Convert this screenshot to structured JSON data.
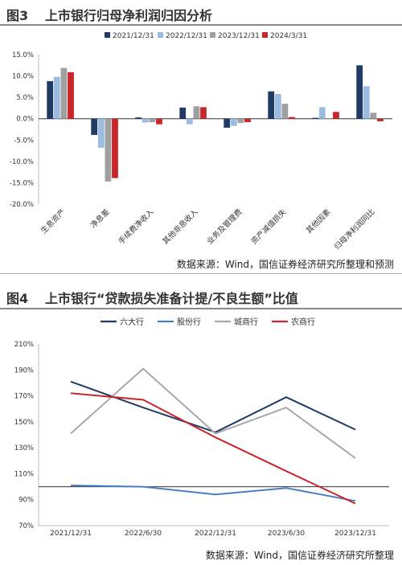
{
  "figure3": {
    "number": "图3",
    "title": "上市银行归母净利润归因分析",
    "source": "数据来源：Wind，国信证券经济研究所整理和预测"
  },
  "figure4": {
    "number": "图4",
    "title": "上市银行“贷款损失准备计提/不良生额”比值",
    "source": "数据来源：Wind，国信证券经济研究所整理"
  },
  "chart_data": [
    {
      "type": "bar",
      "categories": [
        "生息资产",
        "净息差",
        "手续费净收入",
        "其他非息收入",
        "业务及管理费",
        "资产减值损失",
        "其他因素",
        "归母净利润同比"
      ],
      "series": [
        {
          "name": "2021/12/31",
          "color": "#1f3a64",
          "values": [
            8.8,
            -3.8,
            0.3,
            2.6,
            -2.1,
            6.4,
            0.2,
            12.5
          ]
        },
        {
          "name": "2022/12/31",
          "color": "#9cbbe0",
          "values": [
            9.8,
            -6.8,
            -0.9,
            -1.3,
            -1.7,
            5.8,
            2.7,
            7.6
          ]
        },
        {
          "name": "2023/12/31",
          "color": "#a0a0a0",
          "values": [
            11.9,
            -14.7,
            -0.8,
            2.9,
            -1.0,
            3.5,
            0.0,
            1.4
          ]
        },
        {
          "name": "2024/3/31",
          "color": "#c9262c",
          "values": [
            10.9,
            -13.9,
            -1.3,
            2.7,
            -0.8,
            0.4,
            1.6,
            -0.6
          ]
        }
      ],
      "yticks": [
        "15.0%",
        "10.0%",
        "5.0%",
        "0.0%",
        "-5.0%",
        "-10.0%",
        "-15.0%",
        "-20.0%"
      ],
      "ylim": [
        -20,
        15
      ],
      "legend": "top"
    },
    {
      "type": "line",
      "x": [
        "2021/12/31",
        "2022/6/30",
        "2022/12/31",
        "2023/6/30",
        "2023/12/31"
      ],
      "series": [
        {
          "name": "六大行",
          "color": "#1f3a64",
          "values": [
            181,
            161,
            142,
            169,
            144
          ]
        },
        {
          "name": "股份行",
          "color": "#4a7fc0",
          "values": [
            101,
            100,
            94,
            99,
            89
          ]
        },
        {
          "name": "城商行",
          "color": "#a8a8a8",
          "values": [
            141,
            191,
            141,
            161,
            122
          ]
        },
        {
          "name": "农商行",
          "color": "#c9262c",
          "values": [
            172,
            167,
            138,
            112,
            87
          ]
        }
      ],
      "yticks": [
        "210%",
        "190%",
        "170%",
        "150%",
        "130%",
        "110%",
        "90%",
        "70%"
      ],
      "ylim": [
        70,
        210
      ],
      "reference_line": 100,
      "legend": "top"
    }
  ]
}
